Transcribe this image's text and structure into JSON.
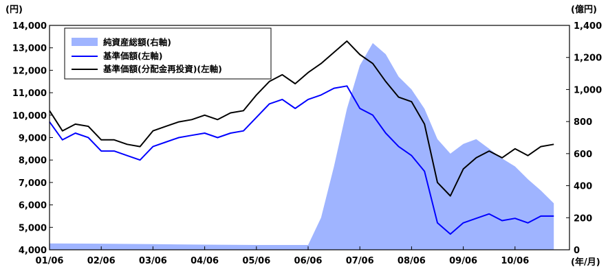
{
  "chart_data": {
    "type": "line",
    "title": "",
    "left_axis_unit": "(円)",
    "right_axis_unit": "(億円)",
    "x_unit_label": "(年/月)",
    "left_ylim": [
      4000,
      14000
    ],
    "right_ylim": [
      0,
      1400
    ],
    "left_ticks": [
      "14,000",
      "13,000",
      "12,000",
      "11,000",
      "10,000",
      "9,000",
      "8,000",
      "7,000",
      "6,000",
      "5,000",
      "4,000"
    ],
    "right_ticks": [
      "1,400",
      "1,200",
      "1,000",
      "800",
      "600",
      "400",
      "200",
      "0"
    ],
    "x_ticks": [
      "01/06",
      "02/06",
      "03/06",
      "04/06",
      "05/06",
      "06/06",
      "07/06",
      "08/06",
      "09/06",
      "10/06"
    ],
    "grid": false,
    "legend_position": "top-left",
    "colors": {
      "net_assets": "#9fb4ff",
      "nav": "#0000ff",
      "nav_reinvested": "#000000"
    },
    "series": [
      {
        "name": "純資産総額(右軸)",
        "type": "area",
        "axis": "right",
        "x": [
          "01/06",
          "02/06",
          "03/06",
          "04/06",
          "05/06",
          "06/06",
          "06/09",
          "06/12",
          "07/03",
          "07/06",
          "07/09",
          "07/12",
          "08/03",
          "08/06",
          "08/09",
          "08/12",
          "09/03",
          "09/06",
          "09/09",
          "09/12",
          "10/03",
          "10/06",
          "10/09",
          "10/12",
          "11/03"
        ],
        "values": [
          40,
          38,
          35,
          32,
          30,
          30,
          200,
          520,
          880,
          1150,
          1290,
          1220,
          1080,
          1000,
          880,
          690,
          600,
          660,
          690,
          630,
          570,
          520,
          440,
          370,
          290
        ]
      },
      {
        "name": "基準価額(左軸)",
        "type": "line",
        "axis": "left",
        "x": [
          "01/06",
          "01/09",
          "01/12",
          "02/03",
          "02/06",
          "02/09",
          "02/12",
          "03/03",
          "03/06",
          "03/09",
          "03/12",
          "04/03",
          "04/06",
          "04/09",
          "04/12",
          "05/03",
          "05/06",
          "05/09",
          "05/12",
          "06/03",
          "06/06",
          "06/09",
          "06/12",
          "07/03",
          "07/06",
          "07/09",
          "07/12",
          "08/03",
          "08/06",
          "08/09",
          "08/12",
          "09/03",
          "09/06",
          "09/09",
          "09/12",
          "10/03",
          "10/06",
          "10/09",
          "10/12",
          "11/03"
        ],
        "values": [
          9700,
          8900,
          9200,
          9000,
          8400,
          8400,
          8200,
          8000,
          8600,
          8800,
          9000,
          9100,
          9200,
          9000,
          9200,
          9300,
          9900,
          10500,
          10700,
          10300,
          10700,
          10900,
          11200,
          11300,
          10300,
          10000,
          9200,
          8600,
          8200,
          7500,
          5200,
          4700,
          5200,
          5400,
          5600,
          5300,
          5400,
          5200,
          5500,
          5500
        ]
      },
      {
        "name": "基準価額(分配金再投資)(左軸)",
        "type": "line",
        "axis": "left",
        "x": [
          "01/06",
          "01/09",
          "01/12",
          "02/03",
          "02/06",
          "02/09",
          "02/12",
          "03/03",
          "03/06",
          "03/09",
          "03/12",
          "04/03",
          "04/06",
          "04/09",
          "04/12",
          "05/03",
          "05/06",
          "05/09",
          "05/12",
          "06/03",
          "06/06",
          "06/09",
          "06/12",
          "07/03",
          "07/06",
          "07/09",
          "07/12",
          "08/03",
          "08/06",
          "08/09",
          "08/12",
          "09/03",
          "09/06",
          "09/09",
          "09/12",
          "10/03",
          "10/06",
          "10/09",
          "10/12",
          "11/03"
        ],
        "values": [
          10200,
          9300,
          9600,
          9500,
          8900,
          8900,
          8700,
          8600,
          9300,
          9500,
          9700,
          9800,
          10000,
          9800,
          10100,
          10200,
          10900,
          11500,
          11800,
          11400,
          11900,
          12300,
          12800,
          13300,
          12700,
          12300,
          11500,
          10800,
          10600,
          9600,
          7000,
          6400,
          7600,
          8100,
          8400,
          8100,
          8500,
          8200,
          8600,
          8700
        ]
      }
    ]
  }
}
